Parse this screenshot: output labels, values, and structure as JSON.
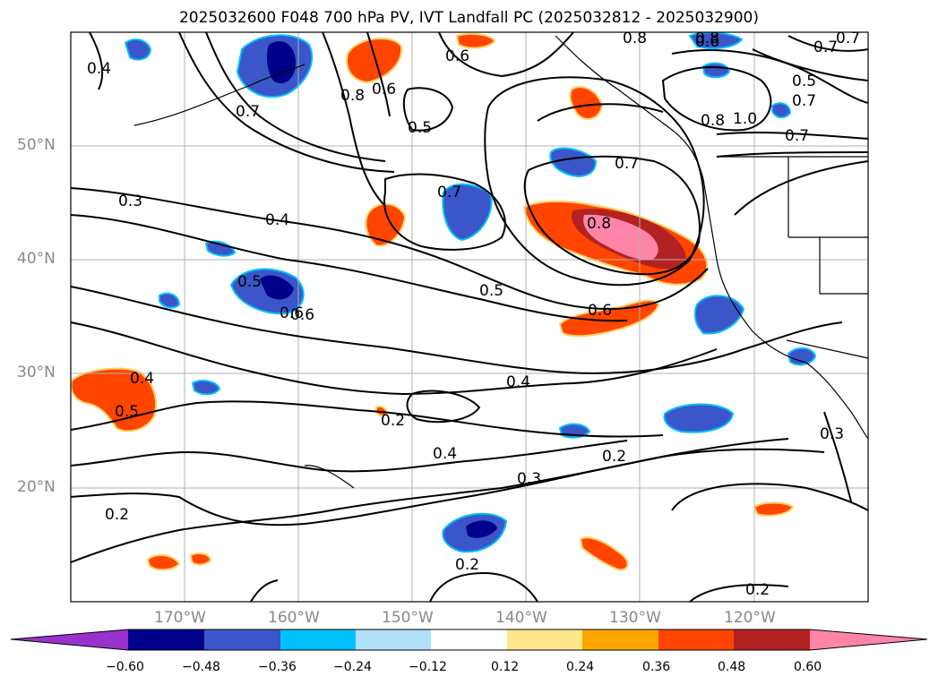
{
  "title": "2025032600 F048 700 hPa PV, IVT Landfall PC (2025032812 - 2025032900)",
  "map": {
    "lon_range": [
      -180,
      -110
    ],
    "lat_range": [
      10,
      60
    ],
    "lat_ticks": [
      "20°N",
      "30°N",
      "40°N",
      "50°N"
    ],
    "lon_ticks": [
      "170°W",
      "160°W",
      "150°W",
      "140°W",
      "130°W",
      "120°W"
    ],
    "contour_labels": [
      "0.4",
      "0.6",
      "0.8",
      "0.6",
      "0.6",
      "0.8",
      "0.7",
      "0.5",
      "0.6",
      "0.8",
      "0.7",
      "0.7",
      "0.5",
      "0.7",
      "1.0",
      "0.8",
      "0.7",
      "0.3",
      "0.4",
      "0.7",
      "0.7",
      "0.8",
      "0.6",
      "0.5",
      "0.6",
      "0.5",
      "0.4",
      "0.4",
      "0.5",
      "0.2",
      "0.4",
      "0.3",
      "0.2",
      "0.2",
      "0.2",
      "0.3",
      "0.2"
    ],
    "gridlines": true
  },
  "colorbar": {
    "ticks": [
      "−0.60",
      "−0.48",
      "−0.36",
      "−0.24",
      "−0.12",
      "0.12",
      "0.24",
      "0.36",
      "0.48",
      "0.60"
    ],
    "colors": [
      "#9932cc",
      "#00008b",
      "#3a56c8",
      "#00bfff",
      "#b0e0f8",
      "#ffffff",
      "#ffe88a",
      "#ffa500",
      "#ff4500",
      "#b22222",
      "#ff85a8",
      "#ff85a8"
    ]
  }
}
